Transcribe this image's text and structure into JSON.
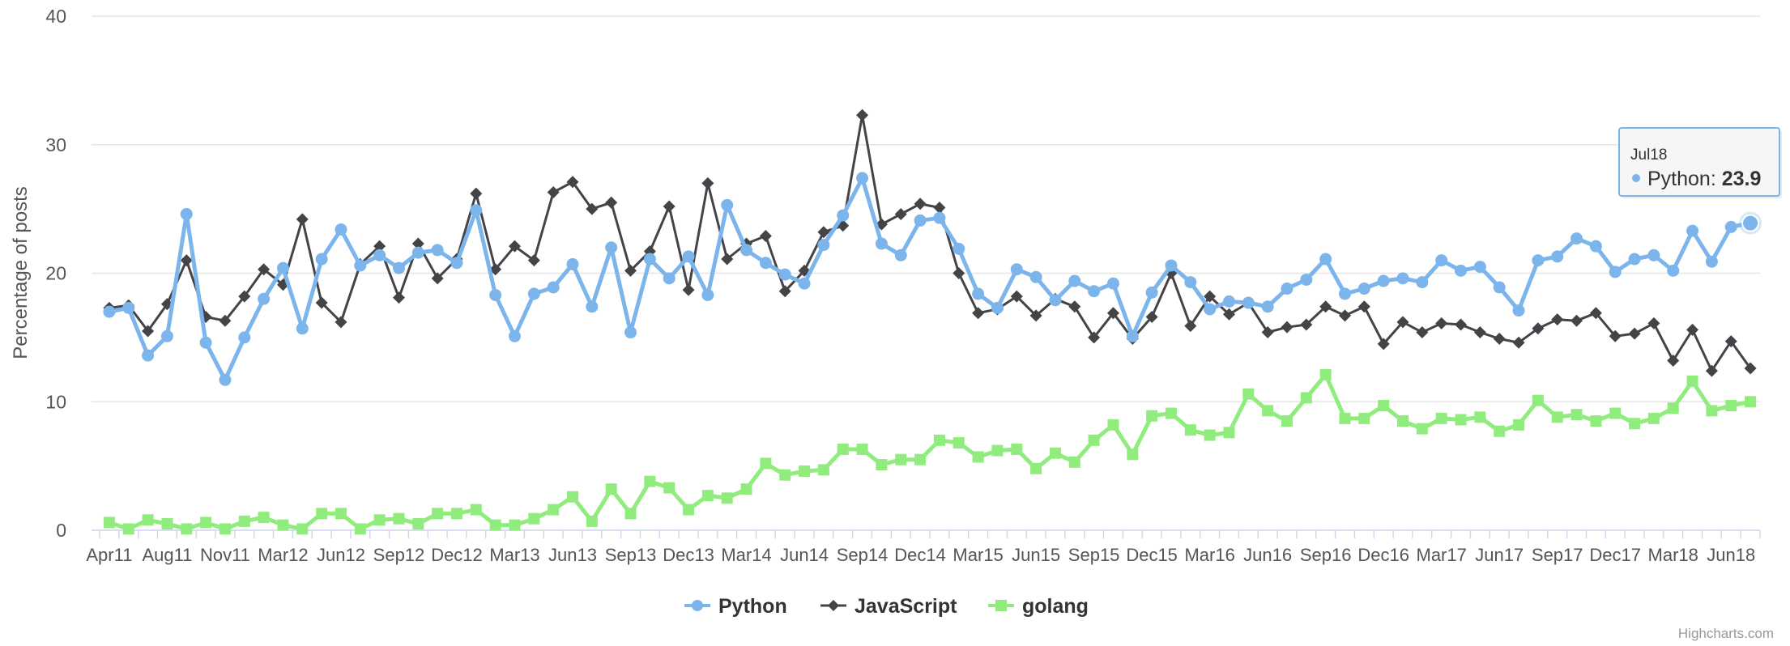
{
  "chart_data": {
    "type": "line",
    "ylabel": "Percentage of posts",
    "ylim": [
      0,
      40
    ],
    "yticks": [
      "0",
      "10",
      "20",
      "30",
      "40"
    ],
    "grid": true,
    "legend_position": "bottom-center",
    "x_tick_labels": [
      "Apr11",
      "Aug11",
      "Nov11",
      "Mar12",
      "Jun12",
      "Sep12",
      "Dec12",
      "Mar13",
      "Jun13",
      "Sep13",
      "Dec13",
      "Mar14",
      "Jun14",
      "Sep14",
      "Dec14",
      "Mar15",
      "Jun15",
      "Sep15",
      "Dec15",
      "Mar16",
      "Jun16",
      "Sep16",
      "Dec16",
      "Mar17",
      "Jun17",
      "Sep17",
      "Dec17",
      "Mar18",
      "Jun18"
    ],
    "x_first_month": "Apr11",
    "x_last_month": "Jul18",
    "series": [
      {
        "name": "Python",
        "color": "#7cb5ec",
        "marker": "circle",
        "values": [
          17.0,
          17.3,
          13.6,
          15.1,
          24.6,
          14.6,
          11.7,
          15.0,
          18.0,
          20.4,
          15.7,
          21.1,
          23.4,
          20.6,
          21.4,
          20.4,
          21.6,
          21.8,
          20.8,
          24.9,
          18.3,
          15.1,
          18.4,
          18.9,
          20.7,
          17.4,
          22.0,
          15.4,
          21.1,
          19.6,
          21.3,
          18.3,
          25.3,
          21.8,
          20.8,
          19.9,
          19.2,
          22.2,
          24.5,
          27.4,
          22.3,
          21.4,
          24.1,
          24.3,
          21.9,
          18.4,
          17.3,
          20.3,
          19.7,
          17.9,
          19.4,
          18.6,
          19.2,
          15.1,
          18.5,
          20.6,
          19.3,
          17.2,
          17.8,
          17.7,
          17.4,
          18.8,
          19.5,
          21.1,
          18.4,
          18.8,
          19.4,
          19.6,
          19.3,
          21.0,
          20.2,
          20.5,
          18.9,
          17.1,
          21.0,
          21.3,
          22.7,
          22.1,
          20.1,
          21.1,
          21.4,
          20.2,
          23.3,
          20.9,
          23.6,
          23.9
        ]
      },
      {
        "name": "JavaScript",
        "color": "#434348",
        "marker": "diamond",
        "values": [
          17.3,
          17.5,
          15.5,
          17.6,
          21.0,
          16.6,
          16.3,
          18.2,
          20.3,
          19.1,
          24.2,
          17.7,
          16.2,
          20.7,
          22.1,
          18.1,
          22.3,
          19.6,
          21.1,
          26.2,
          20.3,
          22.1,
          21.0,
          26.3,
          27.1,
          25.0,
          25.5,
          20.2,
          21.7,
          25.2,
          18.7,
          27.0,
          21.1,
          22.3,
          22.9,
          18.6,
          20.2,
          23.2,
          23.7,
          32.3,
          23.8,
          24.6,
          25.4,
          25.1,
          20.0,
          16.9,
          17.2,
          18.2,
          16.7,
          18.0,
          17.4,
          15.0,
          16.9,
          14.9,
          16.6,
          20.0,
          15.9,
          18.2,
          16.8,
          17.7,
          15.4,
          15.8,
          16.0,
          17.4,
          16.7,
          17.4,
          14.5,
          16.2,
          15.4,
          16.1,
          16.0,
          15.4,
          14.9,
          14.6,
          15.7,
          16.4,
          16.3,
          16.9,
          15.1,
          15.3,
          16.1,
          13.2,
          15.6,
          12.4,
          14.7,
          12.6
        ]
      },
      {
        "name": "golang",
        "color": "#90ed7d",
        "marker": "square",
        "values": [
          0.6,
          0.1,
          0.8,
          0.5,
          0.1,
          0.6,
          0.1,
          0.7,
          1.0,
          0.4,
          0.1,
          1.3,
          1.3,
          0.1,
          0.8,
          0.9,
          0.5,
          1.3,
          1.3,
          1.6,
          0.4,
          0.4,
          0.9,
          1.6,
          2.6,
          0.7,
          3.2,
          1.3,
          3.8,
          3.3,
          1.6,
          2.7,
          2.5,
          3.2,
          5.2,
          4.3,
          4.6,
          4.7,
          6.3,
          6.3,
          5.1,
          5.5,
          5.5,
          7.0,
          6.8,
          5.7,
          6.2,
          6.3,
          4.8,
          6.0,
          5.3,
          7.0,
          8.2,
          5.9,
          8.9,
          9.1,
          7.8,
          7.4,
          7.6,
          10.6,
          9.3,
          8.5,
          10.3,
          12.1,
          8.7,
          8.7,
          9.7,
          8.5,
          7.9,
          8.7,
          8.6,
          8.8,
          7.7,
          8.2,
          10.1,
          8.8,
          9.0,
          8.5,
          9.1,
          8.3,
          8.7,
          9.5,
          11.6,
          9.3,
          9.7,
          10.0
        ]
      }
    ],
    "tooltip": {
      "date": "Jul18",
      "series_name": "Python",
      "label": "Python: ",
      "value": "23.9",
      "border_color": "#7cb5ec"
    }
  },
  "credit": "Highcharts.com"
}
